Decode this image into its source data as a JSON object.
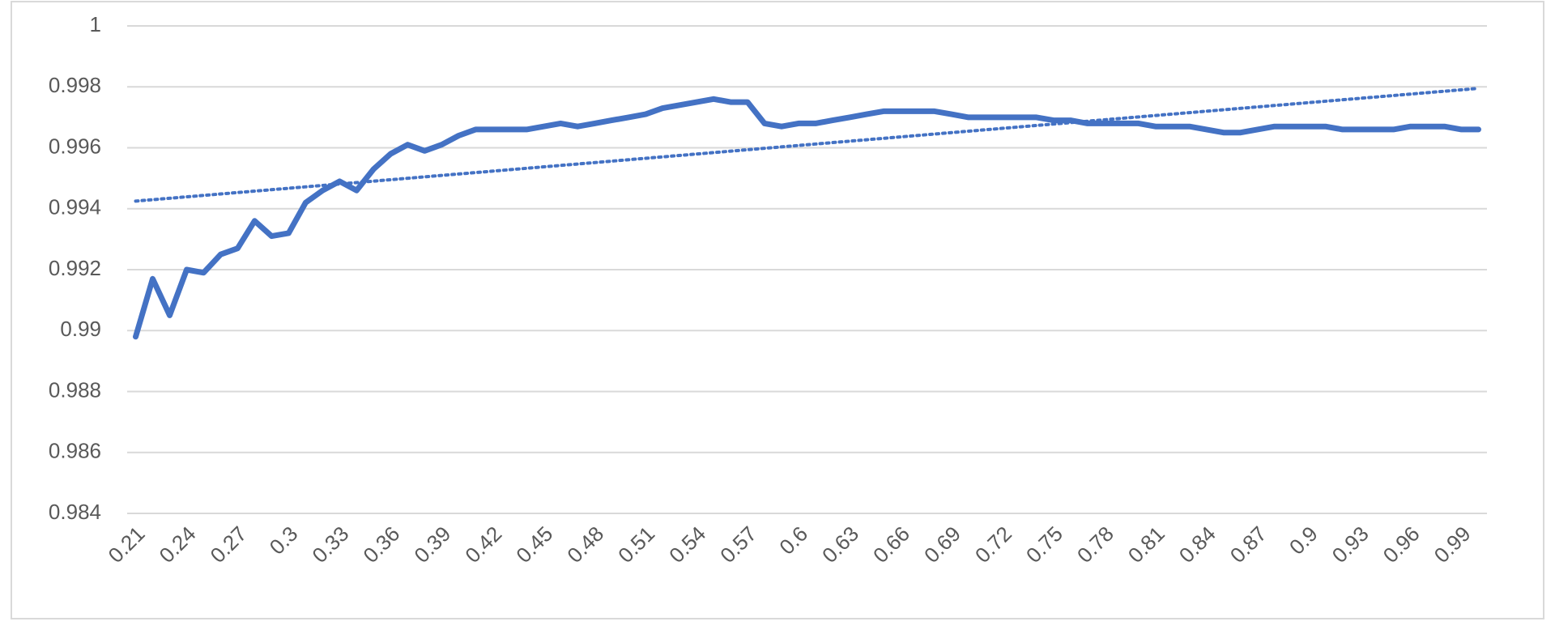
{
  "chart_data": {
    "type": "line",
    "categories": [
      "0.21",
      null,
      null,
      "0.24",
      null,
      null,
      "0.27",
      null,
      null,
      "0.3",
      null,
      null,
      "0.33",
      null,
      null,
      "0.36",
      null,
      null,
      "0.39",
      null,
      null,
      "0.42",
      null,
      null,
      "0.45",
      null,
      null,
      "0.48",
      null,
      null,
      "0.51",
      null,
      null,
      "0.54",
      null,
      null,
      "0.57",
      null,
      null,
      "0.6",
      null,
      null,
      "0.63",
      null,
      null,
      "0.66",
      null,
      null,
      "0.69",
      null,
      null,
      "0.72",
      null,
      null,
      "0.75",
      null,
      null,
      "0.78",
      null,
      null,
      "0.81",
      null,
      null,
      "0.84",
      null,
      null,
      "0.87",
      null,
      null,
      "0.9",
      null,
      null,
      "0.93",
      null,
      null,
      "0.96",
      null,
      null,
      "0.99",
      null
    ],
    "values": [
      0.9898,
      0.9917,
      0.9905,
      0.992,
      0.9919,
      0.9925,
      0.9927,
      0.9936,
      0.9931,
      0.9932,
      0.9942,
      0.9946,
      0.9949,
      0.9946,
      0.9953,
      0.9958,
      0.9961,
      0.9959,
      0.9961,
      0.9964,
      0.9966,
      0.9966,
      0.9966,
      0.9966,
      0.9967,
      0.9968,
      0.9967,
      0.9968,
      0.9969,
      0.997,
      0.9971,
      0.9973,
      0.9974,
      0.9975,
      0.9976,
      0.9975,
      0.9975,
      0.9968,
      0.9967,
      0.9968,
      0.9968,
      0.9969,
      0.997,
      0.9971,
      0.9972,
      0.9972,
      0.9972,
      0.9972,
      0.9971,
      0.997,
      0.997,
      0.997,
      0.997,
      0.997,
      0.9969,
      0.9969,
      0.9968,
      0.9968,
      0.9968,
      0.9968,
      0.9967,
      0.9967,
      0.9967,
      0.9966,
      0.9965,
      0.9965,
      0.9966,
      0.9967,
      0.9967,
      0.9967,
      0.9967,
      0.9966,
      0.9966,
      0.9966,
      0.9966,
      0.9967,
      0.9967,
      0.9967,
      0.9966,
      0.9966
    ],
    "color": "#4472c4",
    "trendline": {
      "style": "dotted",
      "start": 0.99425,
      "end": 0.99795
    },
    "ylim": [
      0.984,
      1
    ],
    "yticks": [
      0.984,
      0.986,
      0.988,
      0.99,
      0.992,
      0.994,
      0.996,
      0.998,
      1
    ],
    "grid": true
  }
}
